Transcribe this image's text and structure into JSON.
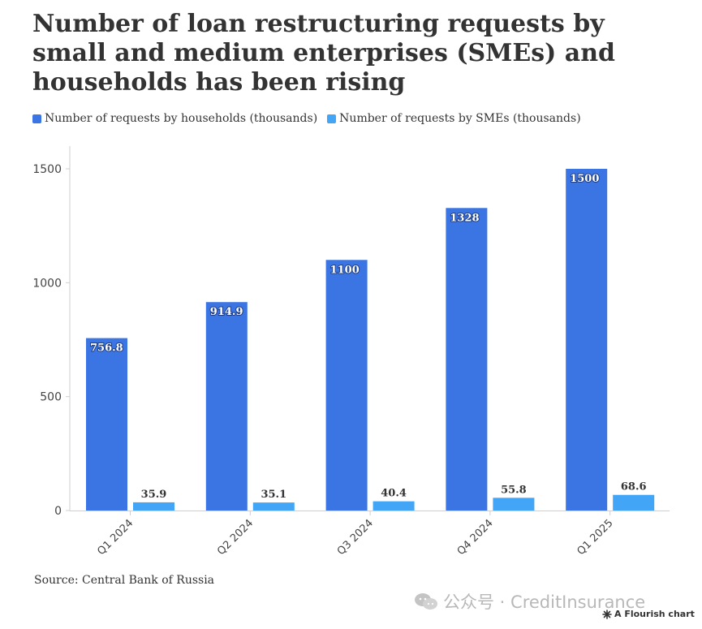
{
  "title": "Number of loan restructuring requests by small and medium enterprises (SMEs) and households has been rising",
  "source": "Source: Central Bank of Russia",
  "watermark_text": "公众号 · CreditInsurance",
  "flourish_label": "A Flourish chart",
  "chart_data": {
    "type": "bar",
    "categories": [
      "Q1 2024",
      "Q2 2024",
      "Q3 2024",
      "Q4 2024",
      "Q1 2025"
    ],
    "series": [
      {
        "name": "Number of requests by households (thousands)",
        "color": "#3b75e3",
        "values": [
          756.8,
          914.9,
          1100,
          1328,
          1500
        ],
        "labels": [
          "756.8",
          "914.9",
          "1100",
          "1328",
          "1500"
        ]
      },
      {
        "name": "Number of requests by SMEs (thousands)",
        "color": "#42a5f5",
        "values": [
          35.9,
          35.1,
          40.4,
          55.8,
          68.6
        ],
        "labels": [
          "35.9",
          "35.1",
          "40.4",
          "55.8",
          "68.6"
        ]
      }
    ],
    "ylim": [
      0,
      1500
    ],
    "yticks": [
      0,
      500,
      1000,
      1500
    ],
    "grid": false,
    "legend": "top-left"
  }
}
